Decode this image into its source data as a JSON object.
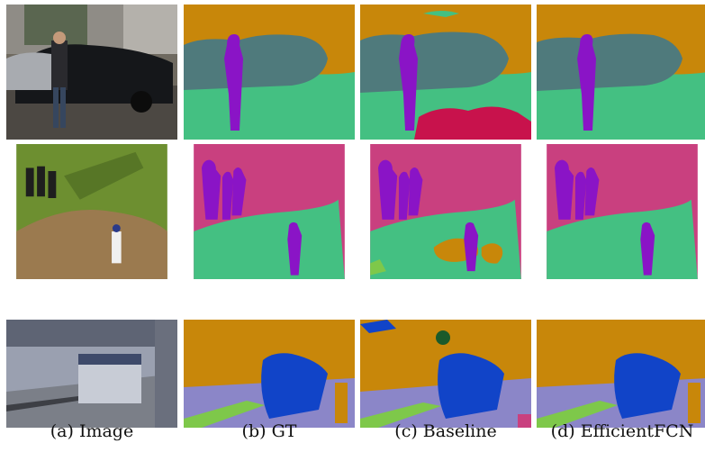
{
  "columns": [
    {
      "caption": "(a) Image"
    },
    {
      "caption": "(b) GT"
    },
    {
      "caption": "(c) Baseline"
    },
    {
      "caption": "(d) EfficientFCN"
    }
  ],
  "colors": {
    "sky_orange": "#c8870a",
    "car_teal": "#4f7a7c",
    "ground_green": "#44c082",
    "person_purple": "#8a14c6",
    "grass_pink": "#c9407f",
    "train_blue": "#1144c8",
    "floor_lavender": "#8b86c8",
    "track_green": "#7ec84a",
    "crimson": "#c8124c"
  }
}
